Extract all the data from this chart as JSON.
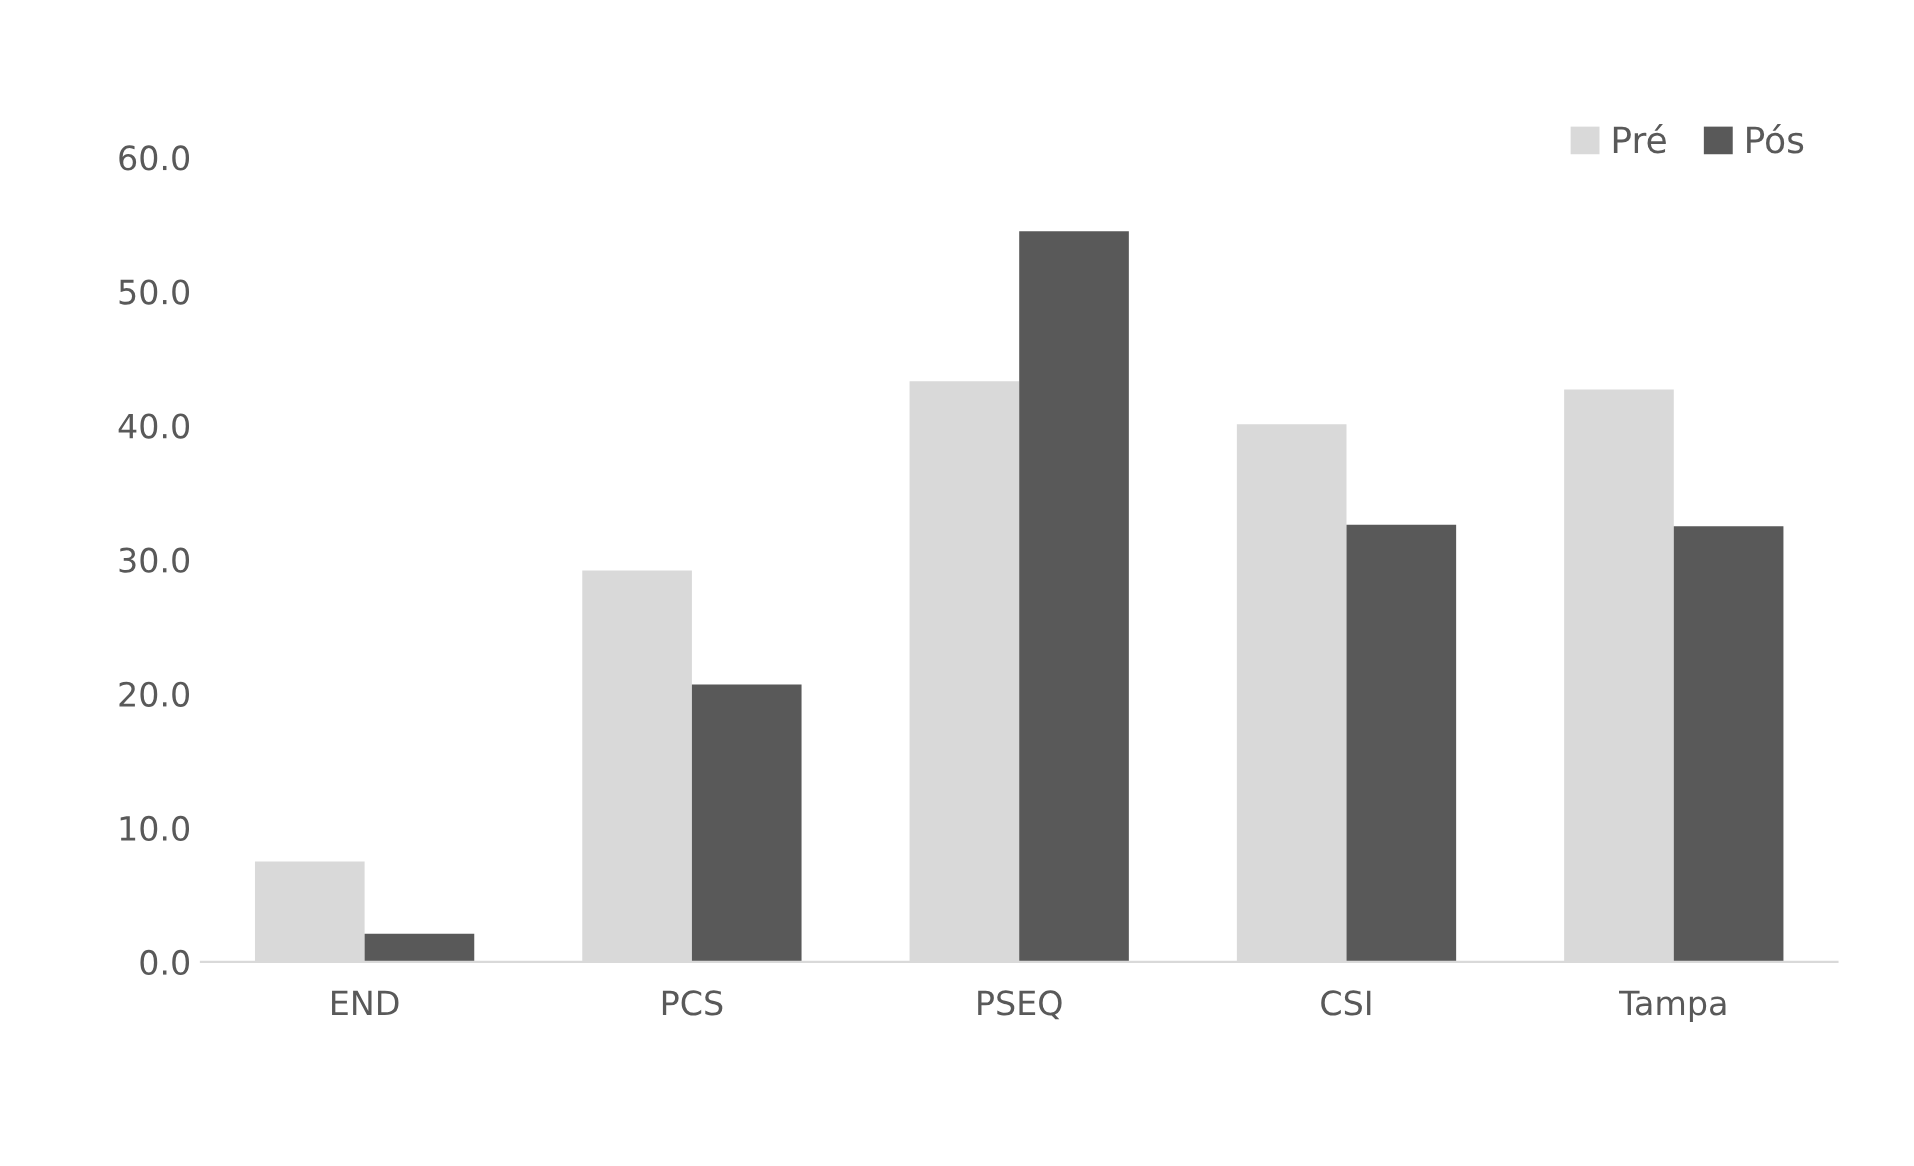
{
  "chart_data": {
    "type": "bar",
    "categories": [
      "END",
      "PCS",
      "PSEQ",
      "CSI",
      "Tampa"
    ],
    "series": [
      {
        "name": "Pré",
        "color": "#d9d9d9",
        "values": [
          7.5,
          29.2,
          43.3,
          40.1,
          42.7
        ]
      },
      {
        "name": "Pós",
        "color": "#595959",
        "values": [
          2.1,
          20.7,
          54.5,
          32.6,
          32.5
        ]
      }
    ],
    "ylim": [
      0,
      60
    ],
    "yticks": [
      {
        "value": 0,
        "label": "0.0"
      },
      {
        "value": 10,
        "label": "10.0"
      },
      {
        "value": 20,
        "label": "20.0"
      },
      {
        "value": 30,
        "label": "30.0"
      },
      {
        "value": 40,
        "label": "40.0"
      },
      {
        "value": 50,
        "label": "50.0"
      },
      {
        "value": 60,
        "label": "60.0"
      }
    ],
    "grid": false,
    "legend": "top right"
  }
}
